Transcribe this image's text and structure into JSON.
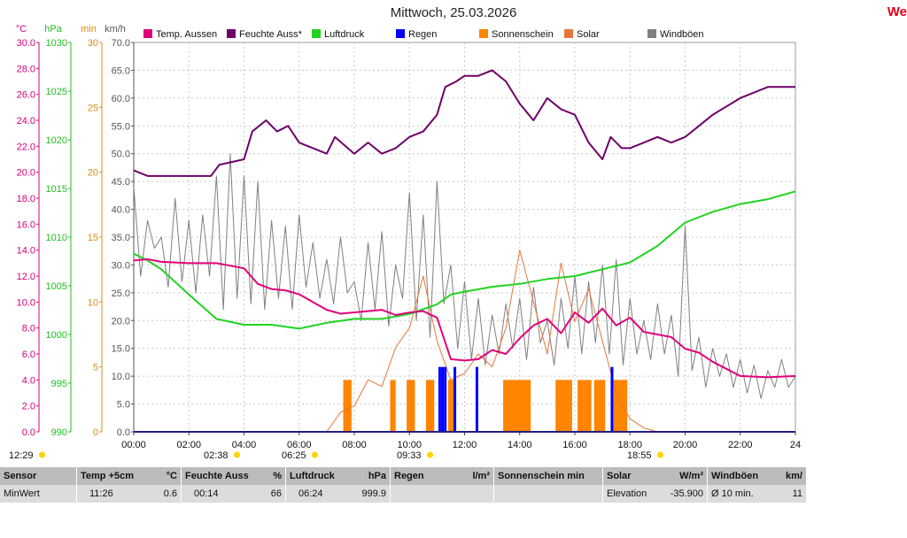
{
  "title": "Mittwoch, 25.03.2026",
  "brand": "We",
  "chart_data": {
    "type": "line",
    "x_ticks": [
      "00:00",
      "02:00",
      "04:00",
      "06:00",
      "08:00",
      "10:00",
      "12:00",
      "14:00",
      "16:00",
      "18:00",
      "20:00",
      "22:00",
      "24"
    ],
    "x_range_hours": [
      0,
      24
    ],
    "legend": [
      {
        "name": "Temp. Aussen",
        "color": "#e2007a"
      },
      {
        "name": "Feuchte Auss*",
        "color": "#6e0068"
      },
      {
        "name": "Luftdruck",
        "color": "#21d321"
      },
      {
        "name": "Regen",
        "color": "#0000ff"
      },
      {
        "name": "Sonnenschein",
        "color": "#ff8400"
      },
      {
        "name": "Solar",
        "color": "#e8753a"
      },
      {
        "name": "Windböen",
        "color": "#808080"
      }
    ],
    "axes": [
      {
        "unit": "°C",
        "min": 0,
        "max": 30,
        "step": 2,
        "color": "#d6007a"
      },
      {
        "unit": "hPa",
        "min": 990,
        "max": 1030,
        "step": 5,
        "color": "#1fbf1f"
      },
      {
        "unit": "min",
        "min": 0,
        "max": 30,
        "step": 5,
        "color": "#d98c1a"
      },
      {
        "unit": "km/h",
        "min": 0,
        "max": 70,
        "step": 5,
        "color": "#555555"
      }
    ],
    "grid": true,
    "series": [
      {
        "name": "Temp. Aussen",
        "axis": "°C",
        "x": [
          0,
          0.5,
          1,
          2,
          3,
          4,
          4.5,
          5,
          5.5,
          6,
          6.5,
          7,
          7.5,
          8,
          8.5,
          9,
          9.5,
          10,
          10.5,
          11,
          11.5,
          12,
          12.5,
          13,
          13.5,
          14,
          14.5,
          15,
          15.5,
          16,
          16.5,
          17,
          17.5,
          18,
          18.5,
          19,
          19.5,
          20,
          20.5,
          21,
          22,
          23,
          24
        ],
        "y": [
          13.2,
          13.3,
          13.1,
          13.0,
          13.0,
          12.6,
          11.4,
          11.0,
          10.9,
          10.6,
          10.0,
          9.4,
          9.1,
          9.2,
          9.3,
          9.4,
          9.0,
          9.2,
          9.3,
          8.8,
          5.6,
          5.5,
          5.6,
          6.3,
          6.0,
          7.2,
          8.2,
          8.7,
          7.6,
          9.2,
          8.4,
          9.5,
          8.2,
          8.8,
          7.7,
          7.5,
          7.3,
          6.4,
          6.1,
          5.4,
          4.3,
          4.2,
          4.3
        ]
      },
      {
        "name": "Feuchte Auss*",
        "axis": "%",
        "x": [
          0,
          0.5,
          1,
          2,
          2.8,
          3.1,
          4,
          4.3,
          4.8,
          5.2,
          5.6,
          6.0,
          6.5,
          7,
          7.3,
          8,
          8.5,
          9,
          9.5,
          10,
          10.5,
          11,
          11.3,
          11.7,
          12,
          12.5,
          13,
          13.5,
          14,
          14.5,
          15,
          15.5,
          16,
          16.5,
          17,
          17.3,
          17.7,
          18,
          18.5,
          19,
          19.5,
          20,
          20.5,
          21,
          22,
          23,
          24
        ],
        "y": [
          47,
          46,
          46,
          46,
          46,
          48,
          49,
          54,
          56,
          54,
          55,
          52,
          51,
          50,
          53,
          50,
          52,
          50,
          51,
          53,
          54,
          57,
          62,
          63,
          64,
          64,
          65,
          63,
          59,
          56,
          60,
          58,
          57,
          52,
          49,
          53,
          51,
          51,
          52,
          53,
          52,
          53,
          55,
          57,
          60,
          62,
          62
        ]
      },
      {
        "name": "Luftdruck",
        "axis": "hPa",
        "x": [
          0,
          0.5,
          1,
          2,
          3,
          4,
          5,
          6,
          7,
          8,
          9,
          10,
          11,
          11.5,
          12,
          13,
          14,
          15,
          16,
          17,
          18,
          19,
          20,
          21,
          22,
          23,
          24
        ],
        "y": [
          1008.3,
          1007.6,
          1006.7,
          1004.1,
          1001.6,
          1001.0,
          1001.0,
          1000.6,
          1001.2,
          1001.6,
          1001.6,
          1002.1,
          1003.1,
          1004.1,
          1004.4,
          1004.9,
          1005.2,
          1005.7,
          1006.0,
          1006.7,
          1007.4,
          1009.1,
          1011.5,
          1012.6,
          1013.4,
          1013.9,
          1014.7
        ]
      },
      {
        "name": "Windböen",
        "axis": "km/h",
        "x": [
          0,
          0.25,
          0.5,
          0.75,
          1,
          1.25,
          1.5,
          1.75,
          2,
          2.25,
          2.5,
          2.75,
          3,
          3.25,
          3.5,
          3.75,
          4,
          4.25,
          4.5,
          4.75,
          5,
          5.25,
          5.5,
          5.75,
          6,
          6.25,
          6.5,
          6.75,
          7,
          7.25,
          7.5,
          7.75,
          8,
          8.25,
          8.5,
          8.75,
          9,
          9.25,
          9.5,
          9.75,
          10,
          10.25,
          10.5,
          10.75,
          11,
          11.25,
          11.5,
          11.75,
          12,
          12.25,
          12.5,
          12.75,
          13,
          13.25,
          13.5,
          13.75,
          14,
          14.25,
          14.5,
          14.75,
          15,
          15.25,
          15.5,
          15.75,
          16,
          16.25,
          16.5,
          16.75,
          17,
          17.25,
          17.5,
          17.75,
          18,
          18.25,
          18.5,
          18.75,
          19,
          19.25,
          19.5,
          19.75,
          20,
          20.25,
          20.5,
          20.75,
          21,
          21.25,
          21.5,
          21.75,
          22,
          22.25,
          22.5,
          22.75,
          23,
          23.25,
          23.5,
          23.75,
          24
        ],
        "y": [
          44,
          28,
          38,
          33,
          35,
          26,
          42,
          27,
          38,
          25,
          39,
          28,
          46,
          22,
          50,
          24,
          46,
          23,
          45,
          22,
          38,
          24,
          37,
          22,
          39,
          26,
          34,
          24,
          31,
          23,
          35,
          25,
          27,
          20,
          34,
          22,
          36,
          19,
          30,
          24,
          43,
          20,
          39,
          17,
          45,
          23,
          30,
          15,
          27,
          13,
          24,
          12,
          21,
          14,
          23,
          15,
          24,
          13,
          26,
          16,
          20,
          12,
          24,
          15,
          28,
          14,
          27,
          16,
          30,
          14,
          31,
          12,
          24,
          14,
          20,
          13,
          23,
          14,
          21,
          10,
          37,
          11,
          17,
          8,
          15,
          10,
          14,
          8,
          13,
          7,
          12,
          6,
          11,
          8,
          13,
          8,
          10
        ]
      },
      {
        "name": "Solar",
        "axis": "min",
        "x": [
          0,
          7.0,
          7.5,
          8.0,
          8.5,
          9.0,
          9.5,
          10.0,
          10.5,
          11.0,
          11.5,
          12.0,
          12.5,
          13.0,
          13.5,
          14.0,
          14.5,
          15.0,
          15.5,
          16.0,
          16.5,
          17.0,
          17.5,
          18.0,
          18.5,
          19.0,
          24
        ],
        "y": [
          0,
          0,
          1.5,
          2.0,
          4.0,
          3.5,
          6.5,
          8.0,
          12.0,
          7.0,
          4.0,
          4.5,
          6.0,
          5.0,
          8.0,
          14.0,
          10.0,
          6.0,
          13.0,
          8.5,
          11.0,
          7.0,
          3.0,
          1.0,
          0.3,
          0,
          0
        ]
      }
    ],
    "sonnenschein_intervals": [
      [
        7.6,
        7.9
      ],
      [
        9.3,
        9.5
      ],
      [
        9.9,
        10.2
      ],
      [
        10.6,
        10.9
      ],
      [
        11.4,
        11.6
      ],
      [
        13.4,
        14.4
      ],
      [
        15.3,
        15.9
      ],
      [
        16.1,
        16.6
      ],
      [
        16.7,
        17.1
      ],
      [
        17.4,
        17.9
      ]
    ],
    "sonnenschein_value_min": 4,
    "regen_bars": [
      [
        11.05,
        5
      ],
      [
        11.15,
        5
      ],
      [
        11.25,
        5
      ],
      [
        11.6,
        5
      ],
      [
        12.4,
        5
      ],
      [
        17.3,
        5
      ]
    ],
    "regen_axis": "min",
    "markers": [
      {
        "label": "12:29",
        "icon": "sun-rise-icon"
      },
      {
        "label": "02:38",
        "icon": "moon-icon"
      },
      {
        "label": "06:25",
        "icon": "sun-icon"
      },
      {
        "label": "09:33",
        "icon": "moon-icon"
      },
      {
        "label": "18:55",
        "icon": "sun-set-icon"
      }
    ]
  },
  "stats": {
    "headers": [
      {
        "label": "Sensor",
        "unit": ""
      },
      {
        "label": "Temp +5cm",
        "unit": "°C"
      },
      {
        "label": "Feuchte Auss",
        "unit": "%"
      },
      {
        "label": "Luftdruck",
        "unit": "hPa"
      },
      {
        "label": "Regen",
        "unit": "l/m²"
      },
      {
        "label": "Sonnenschein min",
        "unit": ""
      },
      {
        "label": "Solar",
        "unit": "W/m²"
      },
      {
        "label": "Windböen",
        "unit": "km/"
      }
    ],
    "values": [
      {
        "label": "MinWert",
        "value": ""
      },
      {
        "label": "11:26",
        "value": "0.6"
      },
      {
        "label": "00:14",
        "value": "66"
      },
      {
        "label": "06:24",
        "value": "999.9"
      },
      {
        "label": "",
        "value": ""
      },
      {
        "label": "",
        "value": ""
      },
      {
        "label": "Elevation",
        "value": "-35.900"
      },
      {
        "label": "Ø 10 min.",
        "value": "11"
      }
    ]
  }
}
